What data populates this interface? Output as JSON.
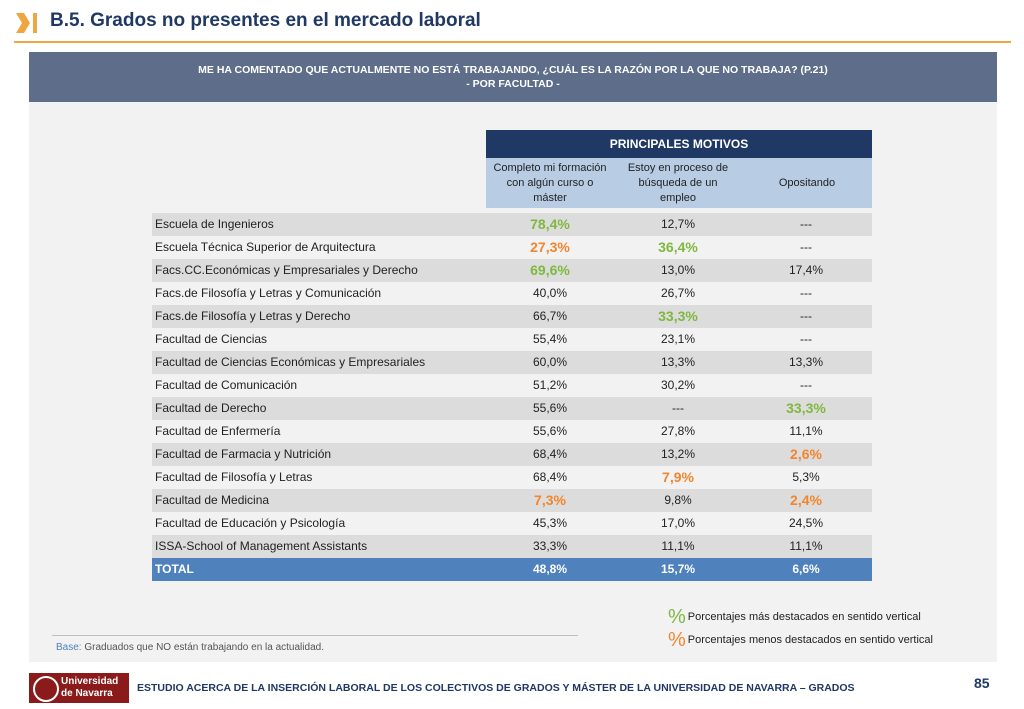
{
  "header": {
    "title": "B.5. Grados no presentes en el mercado laboral"
  },
  "question": {
    "line1": "ME HA COMENTADO QUE ACTUALMENTE NO ESTÁ TRABAJANDO, ¿CUÁL ES LA RAZÓN POR LA QUE NO TRABAJA? (P.21)",
    "line2": "- POR  FACULTAD -"
  },
  "table": {
    "group_header": "PRINCIPALES MOTIVOS",
    "columns": [
      "Completo mi formación con algún curso o máster",
      "Estoy en proceso de búsqueda de un empleo",
      "Opositando"
    ],
    "rows": [
      {
        "name": "Escuela de Ingenieros",
        "v": [
          "78,4%",
          "12,7%",
          "---"
        ],
        "h": [
          "hi",
          "",
          ""
        ]
      },
      {
        "name": "Escuela Técnica Superior de Arquitectura",
        "v": [
          "27,3%",
          "36,4%",
          "---"
        ],
        "h": [
          "lo",
          "hi",
          ""
        ]
      },
      {
        "name": "Facs.CC.Económicas y Empresariales y Derecho",
        "v": [
          "69,6%",
          "13,0%",
          "17,4%"
        ],
        "h": [
          "hi",
          "",
          ""
        ]
      },
      {
        "name": "Facs.de Filosofía y Letras y Comunicación",
        "v": [
          "40,0%",
          "26,7%",
          "---"
        ],
        "h": [
          "",
          "",
          ""
        ]
      },
      {
        "name": "Facs.de Filosofía y Letras y Derecho",
        "v": [
          "66,7%",
          "33,3%",
          "---"
        ],
        "h": [
          "",
          "hi",
          ""
        ]
      },
      {
        "name": "Facultad de Ciencias",
        "v": [
          "55,4%",
          "23,1%",
          "---"
        ],
        "h": [
          "",
          "",
          ""
        ]
      },
      {
        "name": "Facultad de Ciencias Económicas y Empresariales",
        "v": [
          "60,0%",
          "13,3%",
          "13,3%"
        ],
        "h": [
          "",
          "",
          ""
        ]
      },
      {
        "name": "Facultad de Comunicación",
        "v": [
          "51,2%",
          "30,2%",
          "---"
        ],
        "h": [
          "",
          "",
          ""
        ]
      },
      {
        "name": "Facultad de Derecho",
        "v": [
          "55,6%",
          "---",
          "33,3%"
        ],
        "h": [
          "",
          "",
          "hi"
        ]
      },
      {
        "name": "Facultad de Enfermería",
        "v": [
          "55,6%",
          "27,8%",
          "11,1%"
        ],
        "h": [
          "",
          "",
          ""
        ]
      },
      {
        "name": "Facultad de Farmacia y Nutrición",
        "v": [
          "68,4%",
          "13,2%",
          "2,6%"
        ],
        "h": [
          "",
          "",
          "lo"
        ]
      },
      {
        "name": "Facultad de Filosofía y Letras",
        "v": [
          "68,4%",
          "7,9%",
          "5,3%"
        ],
        "h": [
          "",
          "lo",
          ""
        ]
      },
      {
        "name": "Facultad de Medicina",
        "v": [
          "7,3%",
          "9,8%",
          "2,4%"
        ],
        "h": [
          "lo",
          "",
          "lo"
        ]
      },
      {
        "name": "Facultad de Educación y Psicología",
        "v": [
          "45,3%",
          "17,0%",
          "24,5%"
        ],
        "h": [
          "",
          "",
          ""
        ]
      },
      {
        "name": "ISSA-School of Management Assistants",
        "v": [
          "33,3%",
          "11,1%",
          "11,1%"
        ],
        "h": [
          "",
          "",
          ""
        ]
      }
    ],
    "total": {
      "name": "TOTAL",
      "v": [
        "48,8%",
        "15,7%",
        "6,6%"
      ]
    }
  },
  "legend": {
    "symbol": "%",
    "high": "Porcentajes más destacados en sentido vertical",
    "low": "Porcentajes menos destacados en sentido vertical",
    "high_color": "#7fb83f",
    "low_color": "#f3852d"
  },
  "base": {
    "label": "Base:",
    "text": " Graduados que NO están trabajando en la actualidad."
  },
  "footer": {
    "logo_line1": "Universidad",
    "logo_line2": "de Navarra",
    "text": "ESTUDIO ACERCA DE LA INSERCIÓN LABORAL DE LOS COLECTIVOS DE GRADOS Y MÁSTER DE LA UNIVERSIDAD DE NAVARRA – GRADOS",
    "page": "85"
  },
  "colors": {
    "accent": "#f0a640",
    "title": "#1f3864",
    "header_dark": "#1f3864",
    "header_light": "#b8cce4",
    "total_row": "#4f81bd"
  }
}
